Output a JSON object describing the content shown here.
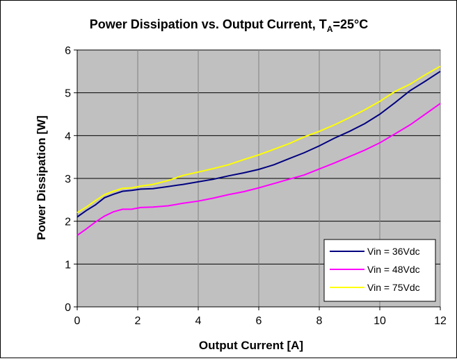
{
  "chart_data": {
    "type": "line",
    "title": {
      "main": "Power Dissipation vs. Output Current, T",
      "subscript": "A",
      "suffix": "=25°C"
    },
    "xlabel": "Output Current [A]",
    "ylabel": "Power Dissipation [W]",
    "xlim": [
      0,
      12
    ],
    "ylim": [
      0,
      6
    ],
    "xticks": [
      "0",
      "2",
      "4",
      "6",
      "8",
      "10",
      "12"
    ],
    "yticks": [
      "0",
      "1",
      "2",
      "3",
      "4",
      "5",
      "6"
    ],
    "grid": true,
    "plot_background": "#c0c0c0",
    "legend_position": "bottom-right",
    "series": [
      {
        "name": "Vin = 36Vdc",
        "color": "#000080",
        "points": [
          [
            0,
            2.1
          ],
          [
            0.3,
            2.25
          ],
          [
            0.6,
            2.38
          ],
          [
            0.9,
            2.55
          ],
          [
            1.2,
            2.63
          ],
          [
            1.5,
            2.7
          ],
          [
            1.8,
            2.72
          ],
          [
            2.1,
            2.75
          ],
          [
            2.5,
            2.76
          ],
          [
            3,
            2.81
          ],
          [
            3.5,
            2.86
          ],
          [
            4,
            2.92
          ],
          [
            4.5,
            2.98
          ],
          [
            5,
            3.06
          ],
          [
            5.5,
            3.13
          ],
          [
            6,
            3.21
          ],
          [
            6.5,
            3.32
          ],
          [
            7,
            3.46
          ],
          [
            7.5,
            3.6
          ],
          [
            8,
            3.76
          ],
          [
            8.5,
            3.94
          ],
          [
            9,
            4.1
          ],
          [
            9.5,
            4.28
          ],
          [
            10,
            4.5
          ],
          [
            10.5,
            4.77
          ],
          [
            11,
            5.05
          ],
          [
            11.5,
            5.27
          ],
          [
            12,
            5.5
          ]
        ]
      },
      {
        "name": "Vin = 48Vdc",
        "color": "#ff00ff",
        "points": [
          [
            0,
            1.67
          ],
          [
            0.3,
            1.82
          ],
          [
            0.6,
            1.98
          ],
          [
            0.9,
            2.12
          ],
          [
            1.2,
            2.22
          ],
          [
            1.5,
            2.28
          ],
          [
            1.8,
            2.28
          ],
          [
            2.1,
            2.32
          ],
          [
            2.5,
            2.33
          ],
          [
            3,
            2.36
          ],
          [
            3.5,
            2.42
          ],
          [
            4,
            2.47
          ],
          [
            4.5,
            2.54
          ],
          [
            5,
            2.62
          ],
          [
            5.5,
            2.69
          ],
          [
            6,
            2.78
          ],
          [
            6.5,
            2.88
          ],
          [
            7,
            2.98
          ],
          [
            7.5,
            3.08
          ],
          [
            8,
            3.22
          ],
          [
            8.5,
            3.36
          ],
          [
            9,
            3.51
          ],
          [
            9.5,
            3.66
          ],
          [
            10,
            3.83
          ],
          [
            10.5,
            4.04
          ],
          [
            11,
            4.25
          ],
          [
            11.5,
            4.5
          ],
          [
            12,
            4.75
          ]
        ]
      },
      {
        "name": "Vin = 75Vdc",
        "color": "#ffff00",
        "points": [
          [
            0,
            2.2
          ],
          [
            0.3,
            2.33
          ],
          [
            0.6,
            2.48
          ],
          [
            0.9,
            2.62
          ],
          [
            1.2,
            2.7
          ],
          [
            1.5,
            2.77
          ],
          [
            1.8,
            2.78
          ],
          [
            2.1,
            2.82
          ],
          [
            2.5,
            2.86
          ],
          [
            3,
            2.95
          ],
          [
            3.5,
            3.07
          ],
          [
            4,
            3.15
          ],
          [
            4.5,
            3.23
          ],
          [
            5,
            3.32
          ],
          [
            5.5,
            3.44
          ],
          [
            6,
            3.55
          ],
          [
            6.5,
            3.68
          ],
          [
            7,
            3.81
          ],
          [
            7.5,
            3.97
          ],
          [
            8,
            4.1
          ],
          [
            8.5,
            4.25
          ],
          [
            9,
            4.42
          ],
          [
            9.5,
            4.6
          ],
          [
            10,
            4.8
          ],
          [
            10.5,
            5.03
          ],
          [
            11,
            5.2
          ],
          [
            11.5,
            5.42
          ],
          [
            12,
            5.62
          ]
        ]
      }
    ]
  }
}
